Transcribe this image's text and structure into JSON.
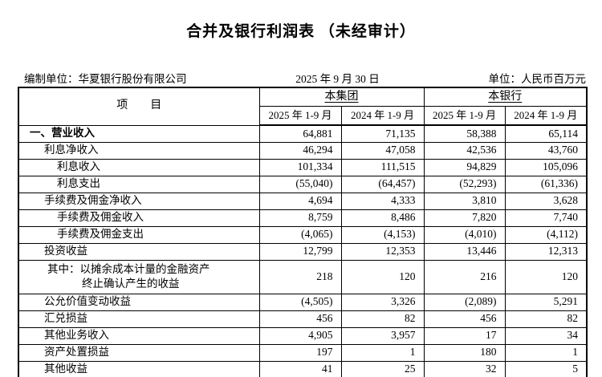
{
  "title": "合并及银行利润表 （未经审计）",
  "meta": {
    "prepared_by": "编制单位：华夏银行股份有限公司",
    "date": "2025 年 9 月 30 日",
    "unit": "单位：人民币百万元"
  },
  "table": {
    "item_header": "项　　目",
    "group_header": "本集团",
    "bank_header": "本银行",
    "col_headers": [
      "2025 年 1-9 月",
      "2024 年 1-9 月",
      "2025 年 1-9 月",
      "2024 年 1-9 月"
    ],
    "rows": [
      {
        "label": "一、营业收入",
        "indent": 0,
        "bold": true,
        "values": [
          "64,881",
          "71,135",
          "58,388",
          "65,114"
        ]
      },
      {
        "label": "利息净收入",
        "indent": 1,
        "bold": false,
        "values": [
          "46,294",
          "47,058",
          "42,536",
          "43,760"
        ]
      },
      {
        "label": "利息收入",
        "indent": 2,
        "bold": false,
        "values": [
          "101,334",
          "111,515",
          "94,829",
          "105,096"
        ]
      },
      {
        "label": "利息支出",
        "indent": 2,
        "bold": false,
        "values": [
          "(55,040)",
          "(64,457)",
          "(52,293)",
          "(61,336)"
        ]
      },
      {
        "label": "手续费及佣金净收入",
        "indent": 1,
        "bold": false,
        "values": [
          "4,694",
          "4,333",
          "3,810",
          "3,628"
        ]
      },
      {
        "label": "手续费及佣金收入",
        "indent": 2,
        "bold": false,
        "values": [
          "8,759",
          "8,486",
          "7,820",
          "7,740"
        ]
      },
      {
        "label": "手续费及佣金支出",
        "indent": 2,
        "bold": false,
        "values": [
          "(4,065)",
          "(4,153)",
          "(4,010)",
          "(4,112)"
        ]
      },
      {
        "label": "投资收益",
        "indent": 1,
        "bold": false,
        "values": [
          "12,799",
          "12,353",
          "13,446",
          "12,313"
        ]
      },
      {
        "label": "其中：以摊余成本计量的金融资产",
        "label2": "终止确认产生的收益",
        "indent": 3,
        "bold": false,
        "values": [
          "218",
          "120",
          "216",
          "120"
        ]
      },
      {
        "label": "公允价值变动收益",
        "indent": 1,
        "bold": false,
        "values": [
          "(4,505)",
          "3,326",
          "(2,089)",
          "5,291"
        ]
      },
      {
        "label": "汇兑损益",
        "indent": 1,
        "bold": false,
        "values": [
          "456",
          "82",
          "456",
          "82"
        ]
      },
      {
        "label": "其他业务收入",
        "indent": 1,
        "bold": false,
        "values": [
          "4,905",
          "3,957",
          "17",
          "34"
        ]
      },
      {
        "label": "资产处置损益",
        "indent": 1,
        "bold": false,
        "values": [
          "197",
          "1",
          "180",
          "1"
        ]
      },
      {
        "label": "其他收益",
        "indent": 1,
        "bold": false,
        "values": [
          "41",
          "25",
          "32",
          "5"
        ]
      }
    ]
  },
  "colors": {
    "text": "#000000",
    "border": "#000000",
    "background": "#ffffff"
  }
}
